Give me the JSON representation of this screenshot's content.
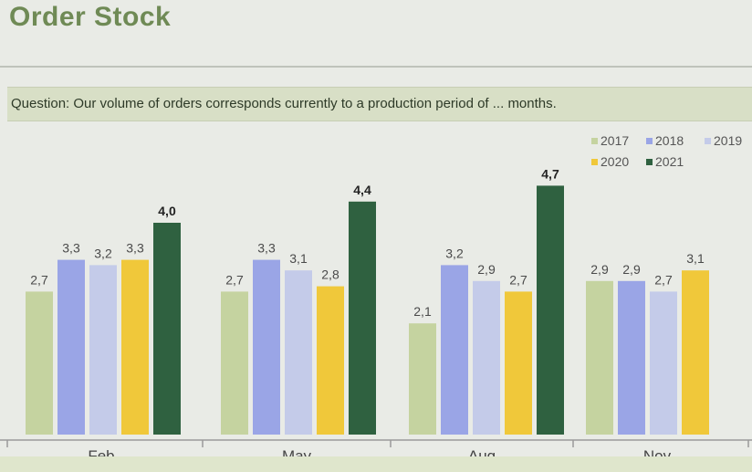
{
  "page": {
    "title": "Order Stock",
    "question": "Question: Our volume of orders corresponds currently to a production period of ... months."
  },
  "chart_data": {
    "type": "bar",
    "categories": [
      "Feb",
      "May",
      "Aug",
      "Nov"
    ],
    "series": [
      {
        "name": "2017",
        "color": "#c5d3a0",
        "values": [
          2.7,
          2.7,
          2.1,
          2.9
        ],
        "labels": [
          "2,7",
          "2,7",
          "2,1",
          "2,9"
        ]
      },
      {
        "name": "2018",
        "color": "#9aa5e6",
        "values": [
          3.3,
          3.3,
          3.2,
          2.9
        ],
        "labels": [
          "3,3",
          "3,3",
          "3,2",
          "2,9"
        ]
      },
      {
        "name": "2019",
        "color": "#c4cbe9",
        "values": [
          3.2,
          3.1,
          2.9,
          2.7
        ],
        "labels": [
          "3,2",
          "3,1",
          "2,9",
          "2,7"
        ]
      },
      {
        "name": "2020",
        "color": "#f0c83a",
        "values": [
          3.3,
          2.8,
          2.7,
          3.1
        ],
        "labels": [
          "3,3",
          "2,8",
          "2,7",
          "3,1"
        ]
      },
      {
        "name": "2021",
        "color": "#2f6140",
        "values": [
          4.0,
          4.4,
          4.7,
          null
        ],
        "labels": [
          "4,0",
          "4,4",
          "4,7",
          ""
        ]
      }
    ],
    "ylim": [
      0,
      4.7
    ],
    "legend": "top-right",
    "grid": false
  }
}
